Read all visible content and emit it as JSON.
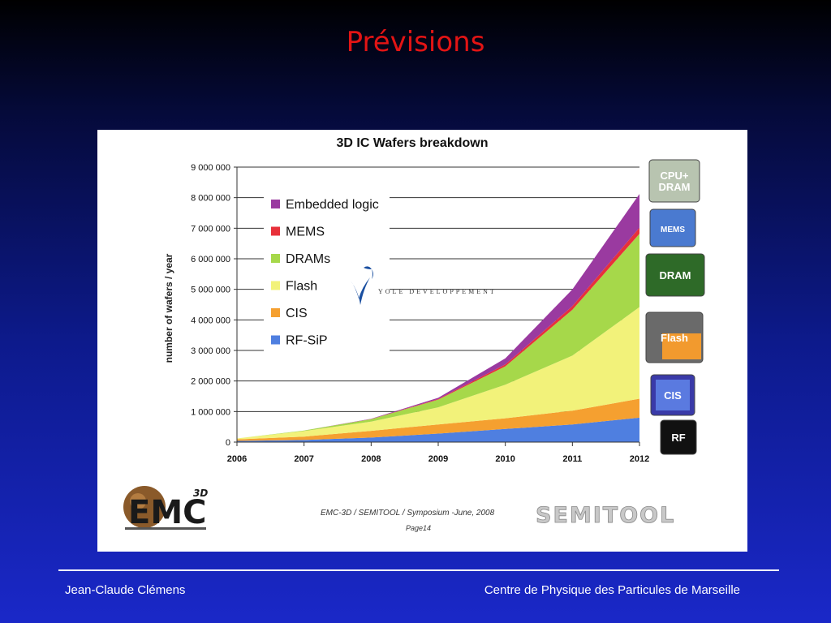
{
  "slide": {
    "title": "Prévisions",
    "footer_left": "Jean-Claude Clémens",
    "footer_right": "Centre de Physique des Particules de Marseille"
  },
  "chart_data": {
    "type": "area",
    "stacked": true,
    "title": "3D IC Wafers breakdown",
    "ylabel": "number of wafers / year",
    "xlabel": "",
    "x": [
      "2006",
      "2007",
      "2008",
      "2009",
      "2010",
      "2011",
      "2012"
    ],
    "ylim": [
      0,
      9000000
    ],
    "yticks": [
      0,
      1000000,
      2000000,
      3000000,
      4000000,
      5000000,
      6000000,
      7000000,
      8000000,
      9000000
    ],
    "ytick_labels": [
      "0",
      "1 000 000",
      "2 000 000",
      "3 000 000",
      "4 000 000",
      "5 000 000",
      "6 000 000",
      "7 000 000",
      "8 000 000",
      "9 000 000"
    ],
    "grid": true,
    "legend_position": "top-left",
    "series": [
      {
        "name": "RF-SiP",
        "color": "#4f7fe0",
        "values": [
          40000,
          70000,
          150000,
          280000,
          430000,
          580000,
          800000
        ]
      },
      {
        "name": "CIS",
        "color": "#f5a030",
        "values": [
          50000,
          110000,
          220000,
          300000,
          350000,
          450000,
          620000
        ]
      },
      {
        "name": "Flash",
        "color": "#f2f27a",
        "values": [
          30000,
          180000,
          300000,
          560000,
          1100000,
          1800000,
          3000000
        ]
      },
      {
        "name": "DRAMs",
        "color": "#a6d84a",
        "values": [
          0,
          20000,
          80000,
          250000,
          600000,
          1500000,
          2400000
        ]
      },
      {
        "name": "MEMS",
        "color": "#e8303a",
        "values": [
          0,
          0,
          5000,
          20000,
          60000,
          120000,
          200000
        ]
      },
      {
        "name": "Embedded logic",
        "color": "#9a3aa0",
        "values": [
          0,
          0,
          10000,
          40000,
          200000,
          550000,
          1100000
        ]
      }
    ],
    "legend_order": [
      "Embedded logic",
      "MEMS",
      "DRAMs",
      "Flash",
      "CIS",
      "RF-SiP"
    ],
    "watermark": "YOLE DEVELOPPEMENT",
    "source_line1": "EMC-3D / SEMITOOL / Symposium  -June, 2008",
    "source_line2": "Page14",
    "brand_logo_text": "SEMITOOL",
    "emc_logo_text": "EMC",
    "emc_logo_sup": "3D",
    "side_icons": [
      {
        "label": "CPU+\nDRAM",
        "icon": "cpu-dram-chip-icon"
      },
      {
        "label": "MEMS",
        "icon": "mems-chip-icon"
      },
      {
        "label": "DRAM",
        "icon": "dram-chip-icon"
      },
      {
        "label": "Flash",
        "icon": "flash-chip-icon"
      },
      {
        "label": "CIS",
        "icon": "cis-sensor-icon"
      },
      {
        "label": "RF",
        "icon": "rf-chip-icon"
      }
    ]
  }
}
